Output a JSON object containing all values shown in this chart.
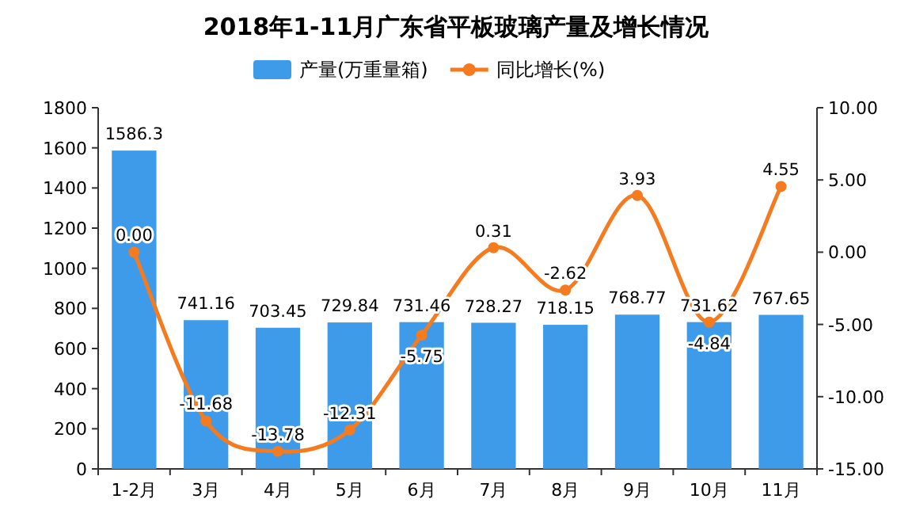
{
  "chart_data": {
    "type": "bar",
    "title": "2018年1-11月广东省平板玻璃产量及增长情况",
    "categories": [
      "1-2月",
      "3月",
      "4月",
      "5月",
      "6月",
      "7月",
      "8月",
      "9月",
      "10月",
      "11月"
    ],
    "series": [
      {
        "name": "产量(万重量箱)",
        "color": "#3d9be9",
        "values": [
          1586.3,
          741.16,
          703.45,
          729.84,
          731.46,
          728.27,
          718.15,
          768.77,
          731.62,
          767.65
        ],
        "value_labels": [
          "1586.3",
          "741.16",
          "703.45",
          "729.84",
          "731.46",
          "728.27",
          "718.15",
          "768.77",
          "731.62",
          "767.65"
        ]
      },
      {
        "name": "同比增长(%)",
        "type": "line",
        "axis": "y2",
        "color": "#f47b20",
        "marker": "circle",
        "values": [
          0.0,
          -11.68,
          -13.78,
          -12.31,
          -5.75,
          0.31,
          -2.62,
          3.93,
          -4.84,
          4.55
        ],
        "value_labels": [
          "0.00",
          "-11.68",
          "-13.78",
          "-12.31",
          "-5.75",
          "0.31",
          "-2.62",
          "3.93",
          "-4.84",
          "4.55"
        ]
      }
    ],
    "ylim": [
      0,
      1800
    ],
    "yticks": [
      0,
      200,
      400,
      600,
      800,
      1000,
      1200,
      1400,
      1600,
      1800
    ],
    "y2lim": [
      -15,
      10
    ],
    "y2ticks": [
      {
        "value": -15,
        "label": "-15.00"
      },
      {
        "value": -10,
        "label": "-10.00"
      },
      {
        "value": -5,
        "label": "-5.00"
      },
      {
        "value": 0,
        "label": "0.00"
      },
      {
        "value": 5,
        "label": "5.00"
      },
      {
        "value": 10,
        "label": "10.00"
      }
    ],
    "legend": "top",
    "grid": false
  }
}
